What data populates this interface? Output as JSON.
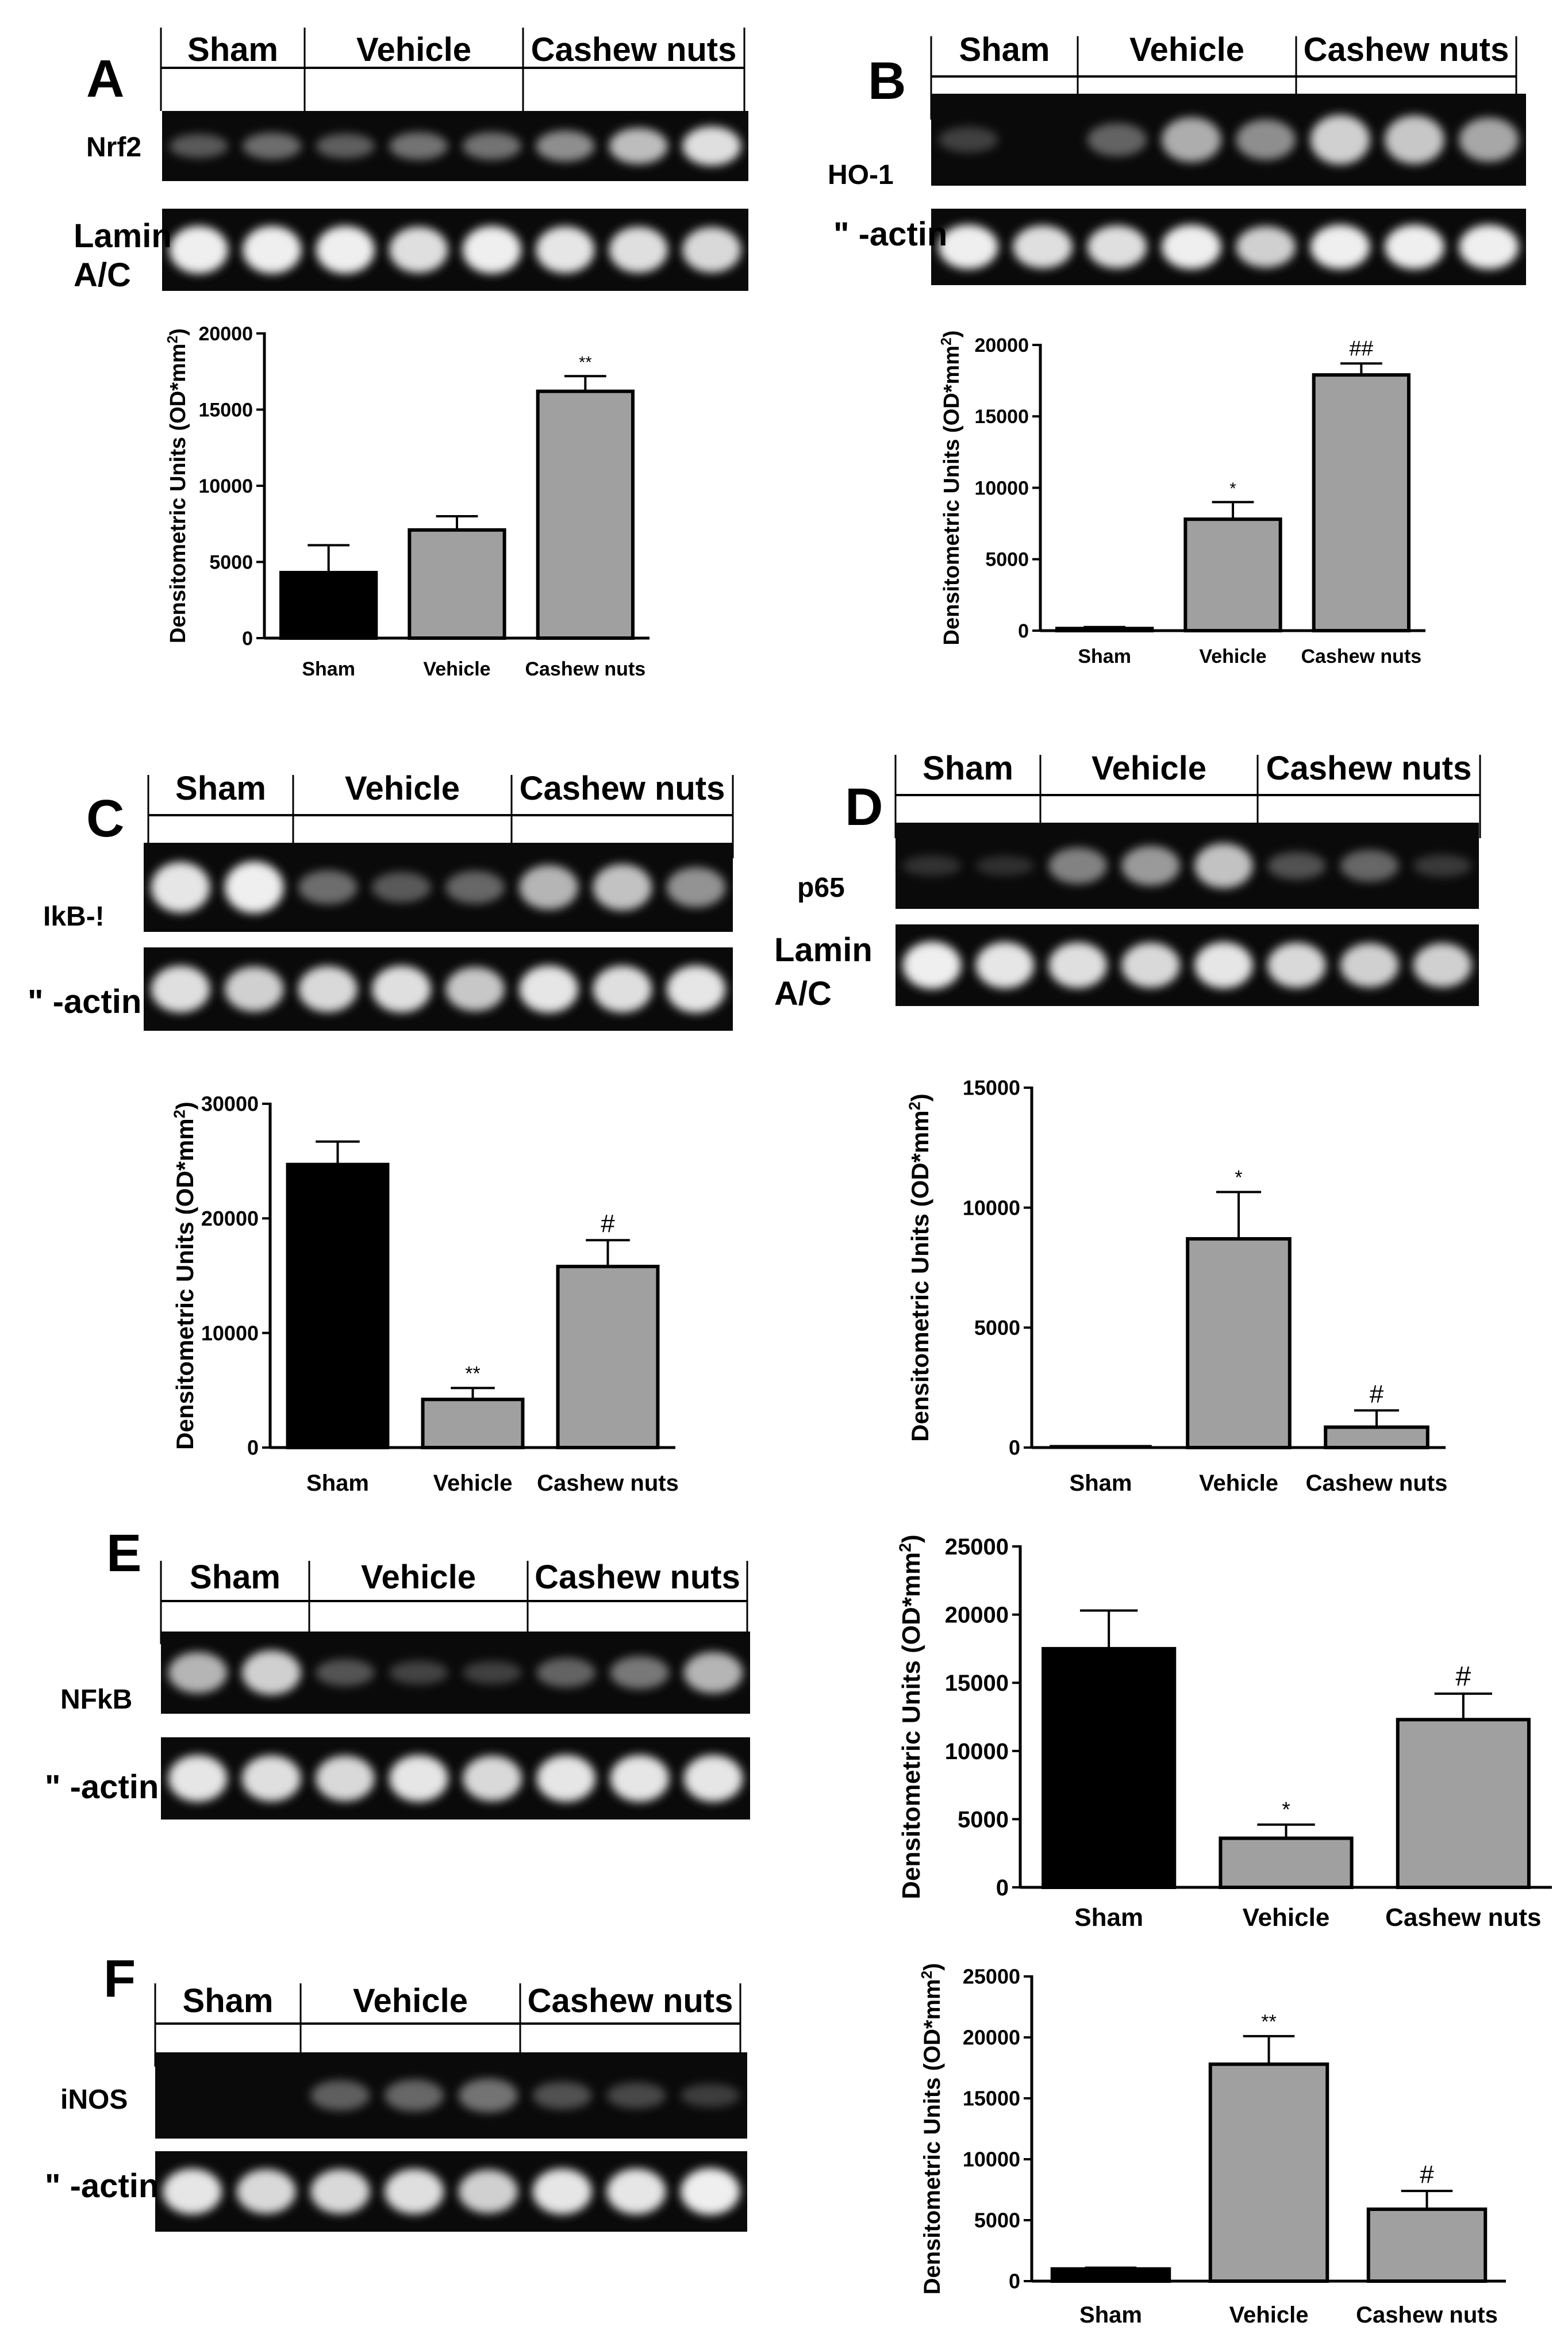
{
  "panels": [
    {
      "letter": "A",
      "groups": [
        "Sham",
        "Vehicle",
        "Cashew nuts"
      ],
      "blot_rows": [
        {
          "label": [
            "Nrf2"
          ],
          "intensities": [
            0.35,
            0.45,
            0.38,
            0.48,
            0.48,
            0.6,
            0.78,
            0.9
          ]
        },
        {
          "label": [
            "Lamin",
            "A/C"
          ],
          "intensities": [
            0.95,
            0.95,
            0.95,
            0.9,
            0.95,
            0.92,
            0.9,
            0.88
          ]
        }
      ],
      "chart_data": {
        "type": "bar",
        "categories": [
          "Sham",
          "Vehicle",
          "Cashew nuts"
        ],
        "values": [
          4300,
          7100,
          16200
        ],
        "errors": [
          1800,
          900,
          1000
        ],
        "annotations": [
          "",
          "",
          "**"
        ],
        "bar_colors": [
          "#000000",
          "#a0a0a0",
          "#a0a0a0"
        ],
        "yticks": [
          0,
          5000,
          10000,
          15000,
          20000
        ],
        "ylim": [
          0,
          20000
        ],
        "ylabel": "Densitometric Units (OD*mm",
        "ylabel_sup": "2",
        "ylabel_close": ")",
        "title": ""
      }
    },
    {
      "letter": "B",
      "groups": [
        "Sham",
        "Vehicle",
        "Cashew nuts"
      ],
      "blot_rows": [
        {
          "label": [
            "HO-1"
          ],
          "intensities": [
            0.2,
            0.0,
            0.4,
            0.72,
            0.6,
            0.85,
            0.82,
            0.7
          ]
        },
        {
          "label": [
            "\" -actin"
          ],
          "intensities": [
            0.95,
            0.9,
            0.9,
            0.95,
            0.85,
            0.95,
            0.95,
            0.95
          ]
        }
      ],
      "chart_data": {
        "type": "bar",
        "categories": [
          "Sham",
          "Vehicle",
          "Cashew nuts"
        ],
        "values": [
          150,
          7800,
          17900
        ],
        "errors": [
          100,
          1200,
          800
        ],
        "annotations": [
          "",
          "*",
          "##"
        ],
        "bar_colors": [
          "#000000",
          "#a0a0a0",
          "#a0a0a0"
        ],
        "yticks": [
          0,
          5000,
          10000,
          15000,
          20000
        ],
        "ylim": [
          0,
          20000
        ],
        "ylabel": "Densitometric Units (OD*mm",
        "ylabel_sup": "2",
        "ylabel_close": ")",
        "title": ""
      }
    },
    {
      "letter": "C",
      "groups": [
        "Sham",
        "Vehicle",
        "Cashew nuts"
      ],
      "blot_rows": [
        {
          "label": [
            "IkB-!"
          ],
          "intensities": [
            0.92,
            0.95,
            0.45,
            0.35,
            0.42,
            0.75,
            0.8,
            0.62
          ]
        },
        {
          "label": [
            "\" -actin"
          ],
          "intensities": [
            0.9,
            0.85,
            0.88,
            0.9,
            0.82,
            0.92,
            0.9,
            0.92
          ]
        }
      ],
      "chart_data": {
        "type": "bar",
        "categories": [
          "Sham",
          "Vehicle",
          "Cashew nuts"
        ],
        "values": [
          24700,
          4200,
          15800
        ],
        "errors": [
          2000,
          1000,
          2300
        ],
        "annotations": [
          "",
          "**",
          "#"
        ],
        "bar_colors": [
          "#000000",
          "#a0a0a0",
          "#a0a0a0"
        ],
        "yticks": [
          0,
          10000,
          20000,
          30000
        ],
        "ylim": [
          0,
          30000
        ],
        "ylabel": "Densitometric Units (OD*mm",
        "ylabel_sup": "2",
        "ylabel_close": ")",
        "title": ""
      }
    },
    {
      "letter": "D",
      "groups": [
        "Sham",
        "Vehicle",
        "Cashew nuts"
      ],
      "blot_rows": [
        {
          "label": [
            "p65"
          ],
          "intensities": [
            0.1,
            0.08,
            0.55,
            0.65,
            0.8,
            0.3,
            0.42,
            0.15
          ]
        },
        {
          "label": [
            "Lamin",
            "A/C"
          ],
          "intensities": [
            0.95,
            0.92,
            0.9,
            0.88,
            0.92,
            0.88,
            0.85,
            0.85
          ]
        }
      ],
      "chart_data": {
        "type": "bar",
        "categories": [
          "Sham",
          "Vehicle",
          "Cashew nuts"
        ],
        "values": [
          0,
          8700,
          850
        ],
        "errors": [
          0,
          1950,
          700
        ],
        "annotations": [
          "",
          "*",
          "#"
        ],
        "bar_colors": [
          "#000000",
          "#a0a0a0",
          "#a0a0a0"
        ],
        "yticks": [
          0,
          5000,
          10000,
          15000
        ],
        "ylim": [
          0,
          15000
        ],
        "ylabel": "Densitometric Units (OD*mm",
        "ylabel_sup": "2",
        "ylabel_close": ")",
        "title": ""
      }
    },
    {
      "letter": "E",
      "groups": [
        "Sham",
        "Vehicle",
        "Cashew nuts"
      ],
      "blot_rows": [
        {
          "label": [
            "NFkB"
          ],
          "intensities": [
            0.75,
            0.85,
            0.32,
            0.22,
            0.2,
            0.4,
            0.5,
            0.75
          ]
        },
        {
          "label": [
            "\" -actin"
          ],
          "intensities": [
            0.92,
            0.9,
            0.88,
            0.92,
            0.88,
            0.92,
            0.92,
            0.92
          ]
        }
      ],
      "chart_data": {
        "type": "bar",
        "categories": [
          "Sham",
          "Vehicle",
          "Cashew nuts"
        ],
        "values": [
          17500,
          3600,
          12300
        ],
        "errors": [
          2800,
          1000,
          1900
        ],
        "annotations": [
          "",
          "*",
          "#"
        ],
        "bar_colors": [
          "#000000",
          "#a0a0a0",
          "#a0a0a0"
        ],
        "yticks": [
          0,
          5000,
          10000,
          15000,
          20000,
          25000
        ],
        "ylim": [
          0,
          25000
        ],
        "ylabel": "Densitometric Units (OD*mm",
        "ylabel_sup": "2",
        "ylabel_close": ")",
        "title": ""
      }
    },
    {
      "letter": "F",
      "groups": [
        "Sham",
        "Vehicle",
        "Cashew nuts"
      ],
      "blot_rows": [
        {
          "label": [
            "iNOS"
          ],
          "intensities": [
            0.0,
            0.0,
            0.38,
            0.42,
            0.48,
            0.3,
            0.25,
            0.18
          ]
        },
        {
          "label": [
            "\" -actin"
          ],
          "intensities": [
            0.92,
            0.88,
            0.88,
            0.9,
            0.85,
            0.92,
            0.92,
            0.95
          ]
        }
      ],
      "chart_data": {
        "type": "bar",
        "categories": [
          "Sham",
          "Vehicle",
          "Cashew nuts"
        ],
        "values": [
          1000,
          17800,
          5900
        ],
        "errors": [
          100,
          2300,
          1500
        ],
        "annotations": [
          "",
          "**",
          "#"
        ],
        "bar_colors": [
          "#000000",
          "#a0a0a0",
          "#a0a0a0"
        ],
        "yticks": [
          0,
          5000,
          10000,
          15000,
          20000,
          25000
        ],
        "ylim": [
          0,
          25000
        ],
        "ylabel": "Densitometric Units (OD*mm",
        "ylabel_sup": "2",
        "ylabel_close": ")",
        "title": ""
      }
    }
  ]
}
